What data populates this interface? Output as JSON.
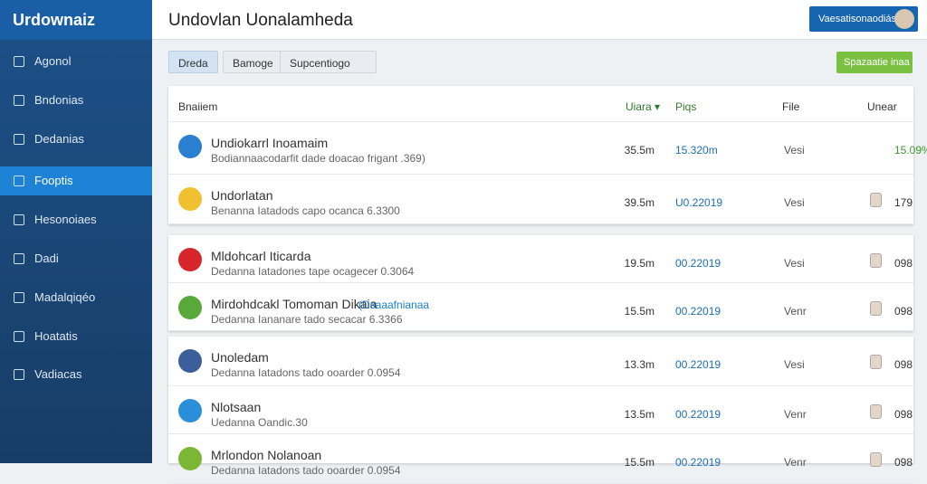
{
  "sidebar": {
    "logo": "Urdownaiz",
    "items": [
      "Agonol",
      "Bndonias",
      "Dedanias",
      "Fooptis",
      "Hesonoiaes",
      "Dadi",
      "Madalqiqéo",
      "Hoatatis",
      "Vadiacas"
    ]
  },
  "header": {
    "title": "Undovlan Uonalamheda",
    "button": "Vaesatisonaodiás"
  },
  "toolbar": {
    "tabs": [
      "Dreda",
      "Bamoge",
      "Supcentiogo"
    ],
    "action": "Spazaatie inaa"
  },
  "table": {
    "columns": [
      "Bnaiiem",
      "Uiara ▾",
      "Piqs",
      "File",
      "Unear"
    ],
    "groups": [
      [
        {
          "name": "Undiokarrl Inoamaim",
          "sub": "Bodiannaacodarfit dade doacao frigant .369)",
          "size": "35.5m",
          "date": "15.320m",
          "file": "Vesi",
          "user": "15.09%"
        },
        {
          "name": "Undorlatan",
          "sub": "Benanna Iatadods capo ocanca 6.3300",
          "size": "39.5m",
          "date": "U0.22019",
          "file": "Vesi",
          "user": "179"
        }
      ],
      [
        {
          "name": "Mldohcarl Iticarda",
          "sub": "Dedanna Iatadones tape ocagecer 0.3064",
          "size": "19.5m",
          "date": "00.22019",
          "file": "Vesi",
          "user": "098"
        },
        {
          "name": "Mirdohdcakl Tomoman Dikaia",
          "tag": "(Dsaaafnianaa",
          "sub": "Dedanna Iananare tado secacar 6.3366",
          "size": "15.5m",
          "date": "00.22019",
          "file": "Venr",
          "user": "098"
        }
      ],
      [
        {
          "name": "Unoledam",
          "sub": "Dedanna Iatadons tado ooarder 0.0954",
          "size": "13.3m",
          "date": "00.22019",
          "file": "Vesi",
          "user": "098"
        },
        {
          "name": "Nlotsaan",
          "sub": "Uedanna Oandic.30",
          "size": "13.5m",
          "date": "00.22019",
          "file": "Venr",
          "user": "098"
        },
        {
          "name": "Mrlondon Nolanoan",
          "sub": "Dedanna Iatadons tado ooarder 0.0954",
          "size": "15.5m",
          "date": "00.22019",
          "file": "Venr",
          "user": "098"
        }
      ]
    ]
  }
}
